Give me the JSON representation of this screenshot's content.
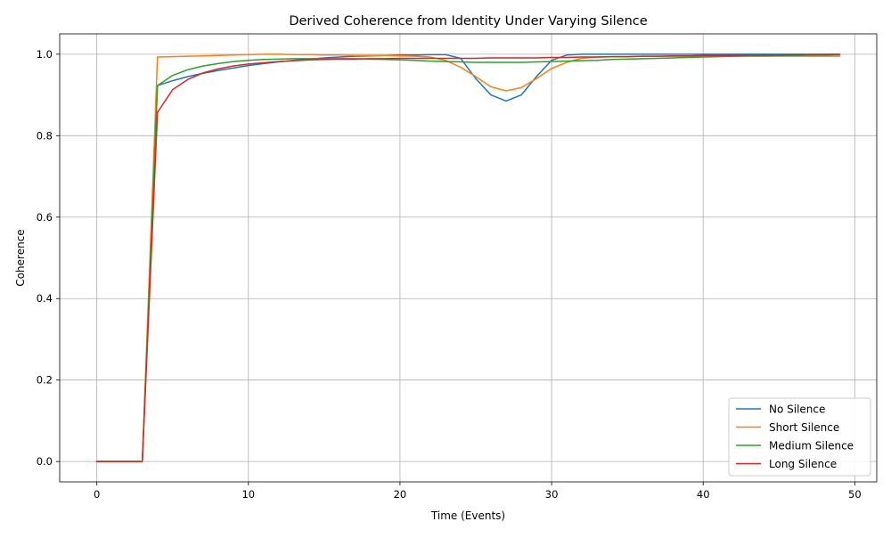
{
  "chart_data": {
    "type": "line",
    "title": "Derived Coherence from Identity Under Varying Silence",
    "xlabel": "Time (Events)",
    "ylabel": "Coherence",
    "xlim": [
      -2.45,
      51.45
    ],
    "ylim": [
      -0.05,
      1.05
    ],
    "xticks": [
      0,
      10,
      20,
      30,
      40,
      50
    ],
    "yticks": [
      0.0,
      0.2,
      0.4,
      0.6,
      0.8,
      1.0
    ],
    "xtick_labels": [
      "0",
      "10",
      "20",
      "30",
      "40",
      "50"
    ],
    "ytick_labels": [
      "0.0",
      "0.2",
      "0.4",
      "0.6",
      "0.8",
      "1.0"
    ],
    "grid": true,
    "legend_position": "lower-right",
    "x": [
      0,
      1,
      2,
      3,
      4,
      5,
      6,
      7,
      8,
      9,
      10,
      11,
      12,
      13,
      14,
      15,
      16,
      17,
      18,
      19,
      20,
      21,
      22,
      23,
      24,
      25,
      26,
      27,
      28,
      29,
      30,
      31,
      32,
      33,
      34,
      35,
      36,
      37,
      38,
      39,
      40,
      41,
      42,
      43,
      44,
      45,
      46,
      47,
      48,
      49
    ],
    "series": [
      {
        "name": "No Silence",
        "color": "#1f77b4",
        "values": [
          0,
          0,
          0,
          0,
          0.923,
          0.935,
          0.945,
          0.953,
          0.96,
          0.966,
          0.972,
          0.977,
          0.981,
          0.985,
          0.988,
          0.991,
          0.993,
          0.995,
          0.996,
          0.997,
          0.998,
          0.998,
          0.999,
          0.999,
          0.99,
          0.94,
          0.9,
          0.885,
          0.9,
          0.945,
          0.985,
          0.998,
          1.0,
          1.0,
          1.0,
          1.0,
          1.0,
          1.0,
          1.0,
          1.0,
          1.0,
          1.0,
          1.0,
          1.0,
          1.0,
          1.0,
          1.0,
          1.0,
          1.0,
          1.0
        ]
      },
      {
        "name": "Short Silence",
        "color": "#ff7f0e",
        "values": [
          0,
          0,
          0,
          0,
          0.993,
          0.994,
          0.995,
          0.996,
          0.997,
          0.998,
          0.999,
          1.0,
          1.0,
          0.999,
          0.999,
          0.998,
          0.998,
          0.997,
          0.997,
          0.997,
          0.996,
          0.995,
          0.993,
          0.985,
          0.968,
          0.945,
          0.92,
          0.91,
          0.918,
          0.94,
          0.965,
          0.98,
          0.99,
          0.993,
          0.994,
          0.994,
          0.995,
          0.995,
          0.995,
          0.995,
          0.995,
          0.995,
          0.995,
          0.995,
          0.995,
          0.995,
          0.995,
          0.995,
          0.995,
          0.995
        ]
      },
      {
        "name": "Medium Silence",
        "color": "#2ca02c",
        "values": [
          0,
          0,
          0,
          0,
          0.923,
          0.948,
          0.962,
          0.971,
          0.977,
          0.982,
          0.985,
          0.987,
          0.988,
          0.989,
          0.989,
          0.989,
          0.989,
          0.989,
          0.988,
          0.987,
          0.986,
          0.985,
          0.983,
          0.982,
          0.981,
          0.98,
          0.98,
          0.98,
          0.98,
          0.981,
          0.982,
          0.983,
          0.984,
          0.985,
          0.987,
          0.988,
          0.989,
          0.99,
          0.991,
          0.992,
          0.993,
          0.994,
          0.995,
          0.996,
          0.996,
          0.997,
          0.997,
          0.998,
          0.998,
          0.999
        ]
      },
      {
        "name": "Long Silence",
        "color": "#d62728",
        "values": [
          0,
          0,
          0,
          0,
          0.857,
          0.913,
          0.938,
          0.954,
          0.964,
          0.971,
          0.976,
          0.979,
          0.982,
          0.984,
          0.986,
          0.987,
          0.988,
          0.988,
          0.989,
          0.989,
          0.99,
          0.99,
          0.99,
          0.99,
          0.99,
          0.99,
          0.991,
          0.991,
          0.991,
          0.991,
          0.992,
          0.992,
          0.993,
          0.993,
          0.994,
          0.994,
          0.995,
          0.995,
          0.996,
          0.996,
          0.997,
          0.997,
          0.997,
          0.998,
          0.998,
          0.998,
          0.999,
          0.999,
          0.999,
          0.999
        ]
      }
    ]
  }
}
